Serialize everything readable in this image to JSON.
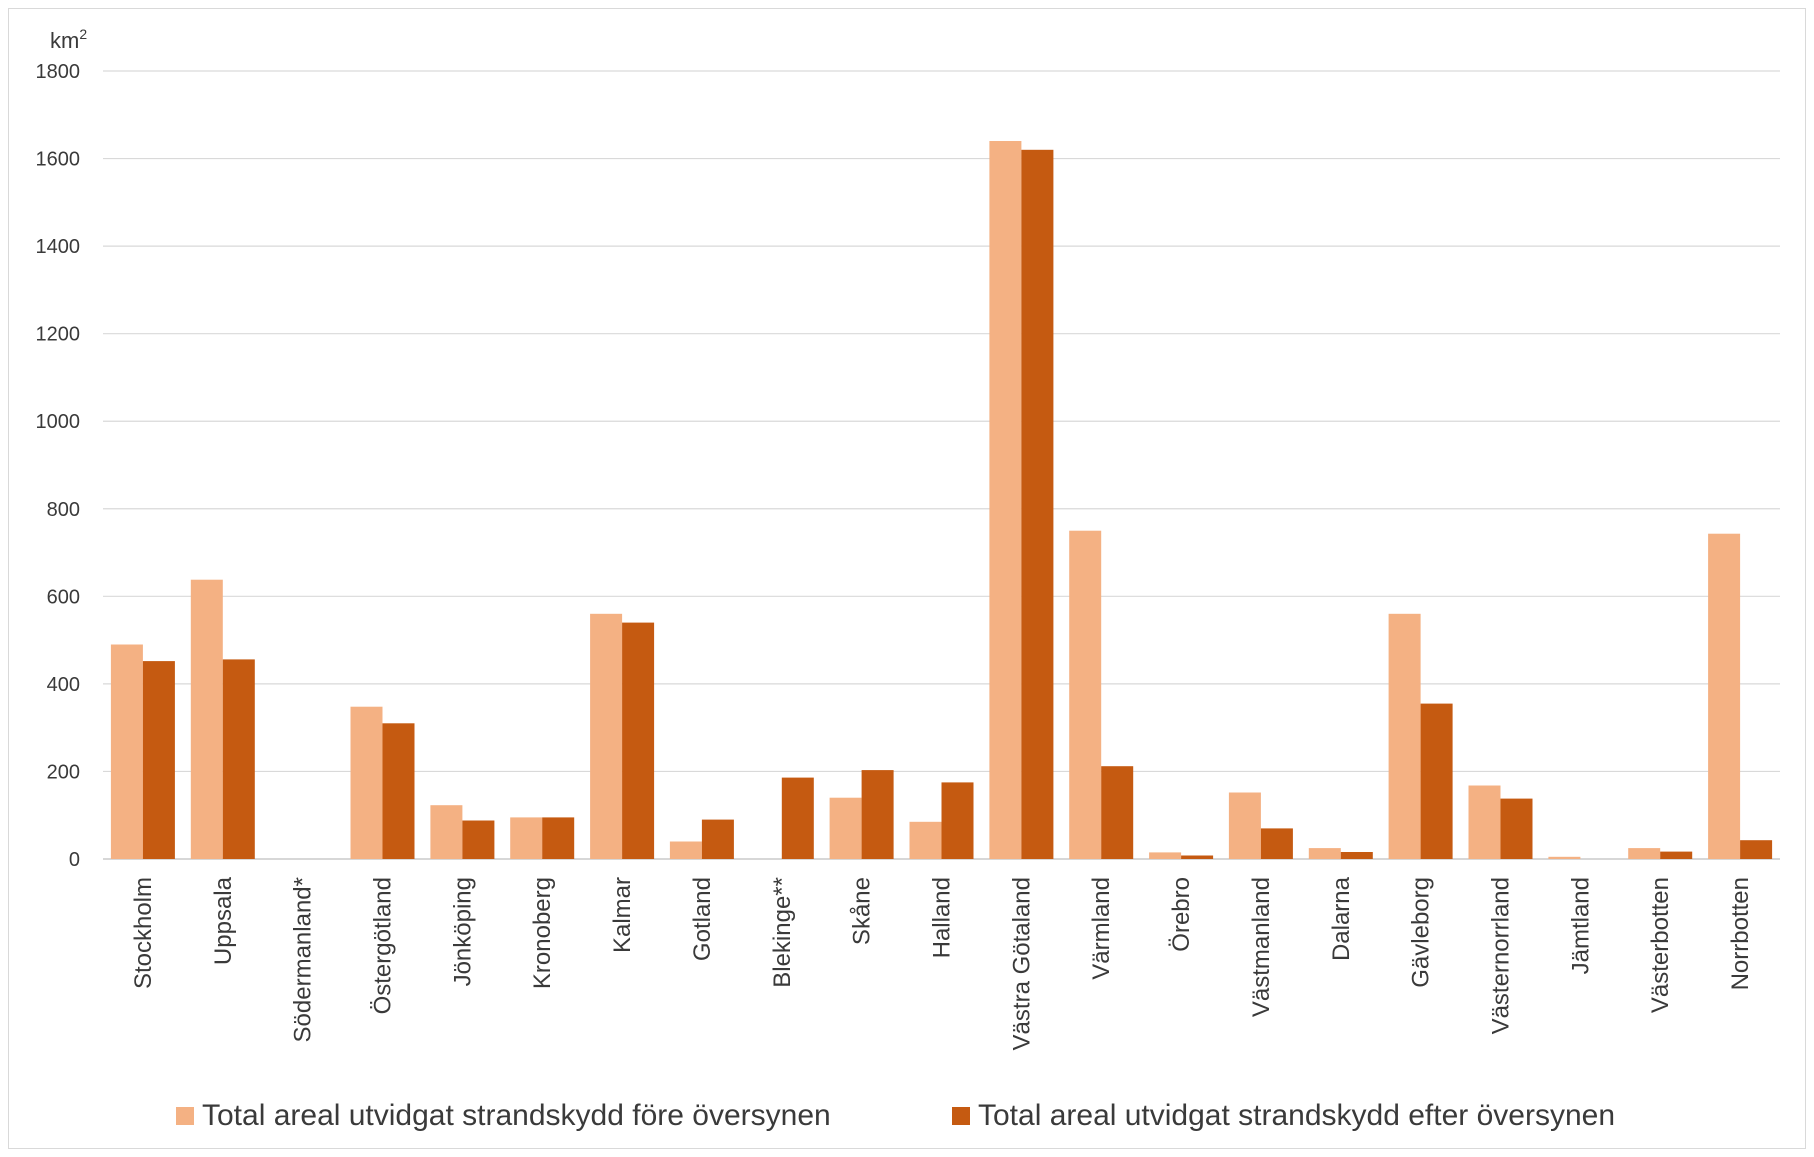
{
  "chart_data": {
    "type": "bar",
    "unit_label": "km",
    "unit_superscript": "2",
    "ylim": [
      0,
      1800
    ],
    "yticks": [
      0,
      200,
      400,
      600,
      800,
      1000,
      1200,
      1400,
      1600,
      1800
    ],
    "grid": true,
    "legend_position": "bottom",
    "categories": [
      "Stockholm",
      "Uppsala",
      "Södermanland*",
      "Östergötland",
      "Jönköping",
      "Kronoberg",
      "Kalmar",
      "Gotland",
      "Blekinge**",
      "Skåne",
      "Halland",
      "Västra Götaland",
      "Värmland",
      "Örebro",
      "Västmanland",
      "Dalarna",
      "Gävleborg",
      "Västernorrland",
      "Jämtland",
      "Västerbotten",
      "Norrbotten"
    ],
    "series": [
      {
        "name": "Total areal utvidgat strandskydd före översynen",
        "color": "#f4b183",
        "values": [
          490,
          638,
          0,
          348,
          123,
          95,
          560,
          40,
          0,
          140,
          85,
          1640,
          750,
          15,
          152,
          25,
          560,
          168,
          5,
          25,
          743
        ]
      },
      {
        "name": "Total areal utvidgat strandskydd efter översynen",
        "color": "#c55a11",
        "values": [
          452,
          456,
          0,
          310,
          88,
          95,
          540,
          90,
          186,
          203,
          175,
          1620,
          212,
          8,
          70,
          16,
          355,
          138,
          0,
          17,
          43
        ]
      }
    ]
  }
}
